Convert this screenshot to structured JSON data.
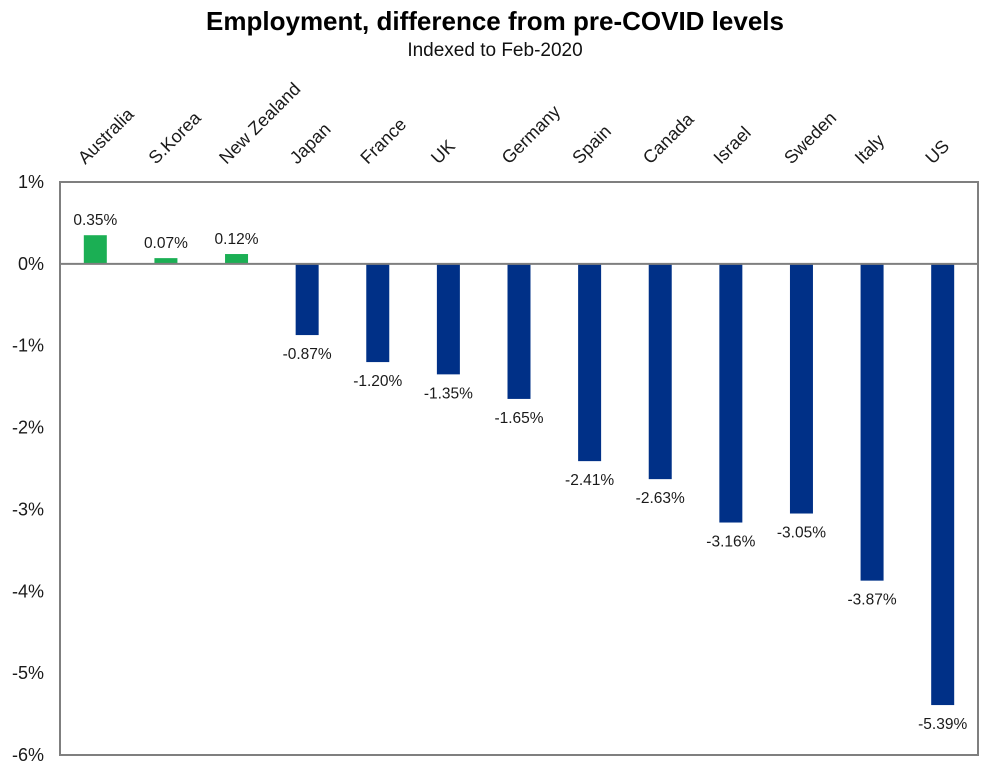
{
  "chart_data": {
    "type": "bar",
    "title": "Employment, difference from pre-COVID levels",
    "subtitle": "Indexed to Feb-2020",
    "xlabel": "",
    "ylabel": "",
    "categories": [
      "Australia",
      "S.Korea",
      "New Zealand",
      "Japan",
      "France",
      "UK",
      "Germany",
      "Spain",
      "Canada",
      "Israel",
      "Sweden",
      "Italy",
      "US"
    ],
    "values": [
      0.35,
      0.07,
      0.12,
      -0.87,
      -1.2,
      -1.35,
      -1.65,
      -2.41,
      -2.63,
      -3.16,
      -3.05,
      -3.87,
      -5.39
    ],
    "data_labels": [
      "0.35%",
      "0.07%",
      "0.12%",
      "-0.87%",
      "-1.20%",
      "-1.35%",
      "-1.65%",
      "-2.41%",
      "-2.63%",
      "-3.16%",
      "-3.05%",
      "-3.87%",
      "-5.39%"
    ],
    "ylim": [
      -6,
      1
    ],
    "yticks": [
      1,
      0,
      -1,
      -2,
      -3,
      -4,
      -5,
      -6
    ],
    "ytick_labels": [
      "1%",
      "0%",
      "-1%",
      "-2%",
      "-3%",
      "-4%",
      "-5%",
      "-6%"
    ],
    "category_label_position": "top, rotated",
    "grid": false,
    "legend": "none",
    "colors": {
      "positive": "#1BAF54",
      "negative": "#003087",
      "axis": "#7f7f7f"
    }
  }
}
